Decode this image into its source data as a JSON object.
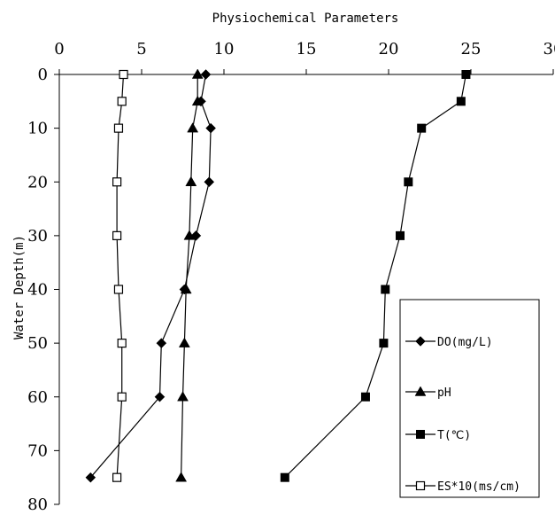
{
  "chart_data": {
    "type": "line",
    "title": "",
    "xlabel": "Physiochemical Parameters",
    "ylabel": "Water Depth(m)",
    "xlim": [
      0,
      30
    ],
    "ylim": [
      0,
      80
    ],
    "y_inverted": true,
    "x_axis_position": "top",
    "x_ticks": [
      0,
      5,
      10,
      15,
      20,
      25,
      30
    ],
    "y_ticks": [
      0,
      10,
      20,
      30,
      40,
      50,
      60,
      70,
      80
    ],
    "grid": false,
    "legend_position": "bottom-right",
    "series": [
      {
        "name": "DO(mg/L)",
        "marker": "diamond",
        "points": [
          {
            "depth": 0,
            "value": 8.9
          },
          {
            "depth": 5,
            "value": 8.6
          },
          {
            "depth": 10,
            "value": 9.2
          },
          {
            "depth": 20,
            "value": 9.1
          },
          {
            "depth": 30,
            "value": 8.3
          },
          {
            "depth": 40,
            "value": 7.6
          },
          {
            "depth": 50,
            "value": 6.2
          },
          {
            "depth": 60,
            "value": 6.1
          },
          {
            "depth": 75,
            "value": 1.9
          }
        ]
      },
      {
        "name": "pH",
        "marker": "triangle",
        "points": [
          {
            "depth": 0,
            "value": 8.4
          },
          {
            "depth": 5,
            "value": 8.4
          },
          {
            "depth": 10,
            "value": 8.1
          },
          {
            "depth": 20,
            "value": 8.0
          },
          {
            "depth": 30,
            "value": 7.9
          },
          {
            "depth": 40,
            "value": 7.7
          },
          {
            "depth": 50,
            "value": 7.6
          },
          {
            "depth": 60,
            "value": 7.5
          },
          {
            "depth": 75,
            "value": 7.4
          }
        ]
      },
      {
        "name": "T(℃)",
        "marker": "filled-square",
        "points": [
          {
            "depth": 0,
            "value": 24.7
          },
          {
            "depth": 5,
            "value": 24.4
          },
          {
            "depth": 10,
            "value": 22.0
          },
          {
            "depth": 20,
            "value": 21.2
          },
          {
            "depth": 30,
            "value": 20.7
          },
          {
            "depth": 40,
            "value": 19.8
          },
          {
            "depth": 50,
            "value": 19.7
          },
          {
            "depth": 60,
            "value": 18.6
          },
          {
            "depth": 75,
            "value": 13.7
          }
        ]
      },
      {
        "name": "ES*10(ms/cm)",
        "marker": "open-square",
        "points": [
          {
            "depth": 0,
            "value": 3.9
          },
          {
            "depth": 5,
            "value": 3.8
          },
          {
            "depth": 10,
            "value": 3.6
          },
          {
            "depth": 20,
            "value": 3.5
          },
          {
            "depth": 30,
            "value": 3.5
          },
          {
            "depth": 40,
            "value": 3.6
          },
          {
            "depth": 50,
            "value": 3.8
          },
          {
            "depth": 60,
            "value": 3.8
          },
          {
            "depth": 75,
            "value": 3.5
          }
        ]
      }
    ]
  }
}
